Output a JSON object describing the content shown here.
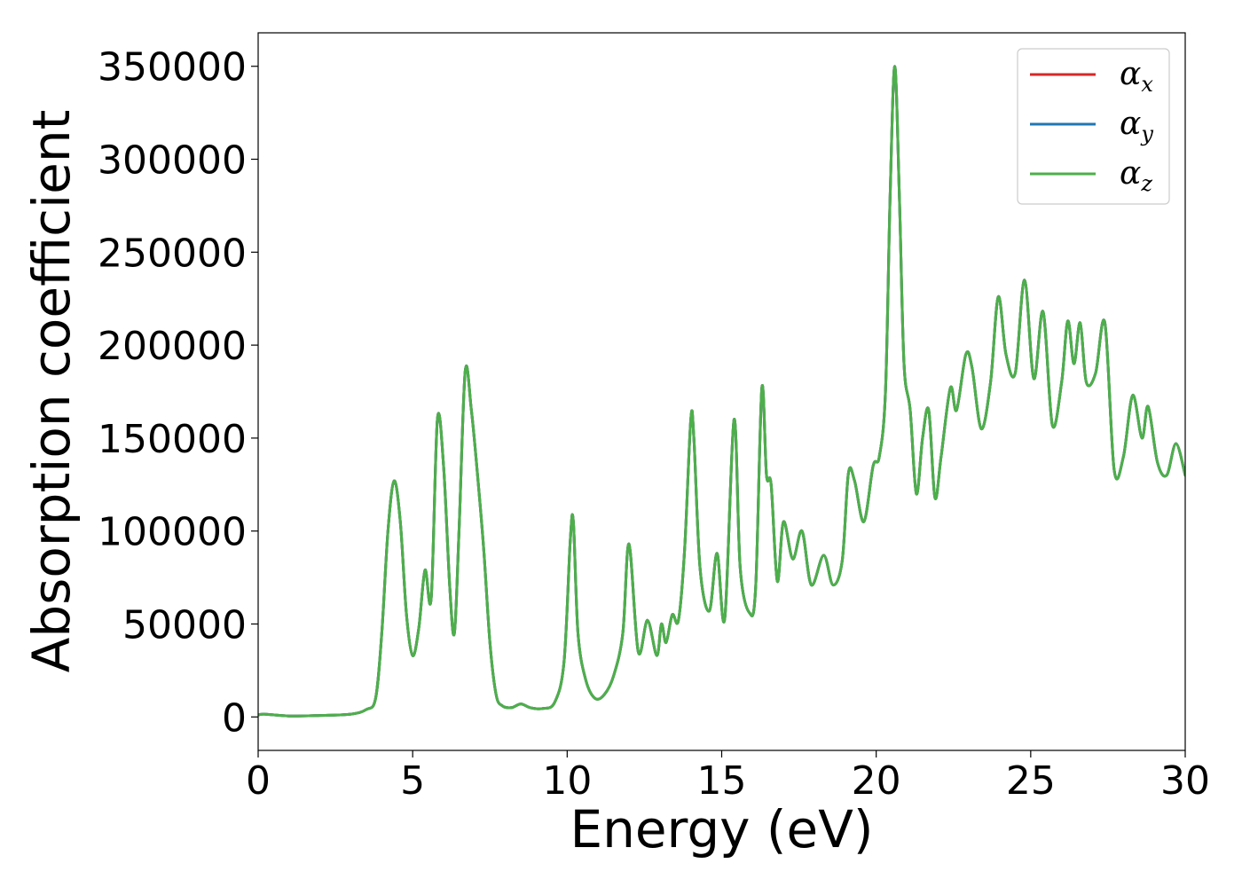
{
  "chart_data": {
    "type": "line",
    "title": "",
    "xlabel": "Energy (eV)",
    "ylabel": "Absorption coefficient",
    "xlim": [
      0,
      30
    ],
    "ylim": [
      -18000,
      368000
    ],
    "x_ticks": [
      "0",
      "5",
      "10",
      "15",
      "20",
      "25",
      "30"
    ],
    "y_ticks": [
      "0",
      "50000",
      "100000",
      "150000",
      "200000",
      "250000",
      "300000",
      "350000"
    ],
    "grid": false,
    "legend_position": "top-right",
    "legend": [
      {
        "symbol": "α",
        "subscript": "x",
        "color": "#d62728"
      },
      {
        "symbol": "α",
        "subscript": "y",
        "color": "#1f77b4"
      },
      {
        "symbol": "α",
        "subscript": "z",
        "color": "#4daf4a"
      }
    ],
    "series": [
      {
        "name": "αx",
        "color": "#d62728",
        "x": [
          0,
          0.2,
          1,
          2,
          3,
          3.5,
          3.8,
          4.0,
          4.2,
          4.4,
          4.6,
          4.8,
          5.0,
          5.2,
          5.4,
          5.6,
          5.8,
          6.0,
          6.2,
          6.35,
          6.5,
          6.7,
          6.9,
          7.1,
          7.3,
          7.5,
          7.7,
          7.9,
          8.2,
          8.5,
          8.8,
          9.2,
          9.6,
          9.9,
          10.1,
          10.2,
          10.35,
          10.6,
          10.9,
          11.2,
          11.5,
          11.8,
          12.0,
          12.3,
          12.6,
          12.9,
          13.05,
          13.2,
          13.4,
          13.6,
          13.8,
          14.0,
          14.1,
          14.3,
          14.6,
          14.85,
          15.1,
          15.4,
          15.6,
          15.9,
          16.1,
          16.3,
          16.45,
          16.6,
          16.8,
          17.0,
          17.3,
          17.6,
          17.9,
          18.3,
          18.6,
          18.9,
          19.1,
          19.3,
          19.6,
          19.9,
          20.1,
          20.3,
          20.45,
          20.6,
          20.75,
          20.9,
          21.1,
          21.3,
          21.5,
          21.7,
          21.9,
          22.1,
          22.4,
          22.6,
          22.9,
          23.1,
          23.4,
          23.7,
          23.95,
          24.2,
          24.5,
          24.8,
          25.1,
          25.4,
          25.7,
          26.0,
          26.2,
          26.4,
          26.6,
          26.8,
          27.1,
          27.4,
          27.7,
          28.0,
          28.3,
          28.6,
          28.8,
          29.1,
          29.4,
          29.7,
          30.0
        ],
        "values": [
          1000,
          1500,
          500,
          800,
          1500,
          4000,
          10000,
          45000,
          100000,
          127000,
          105000,
          55000,
          33000,
          48000,
          79000,
          64000,
          160000,
          135000,
          70000,
          45000,
          100000,
          186000,
          165000,
          130000,
          90000,
          40000,
          12000,
          6000,
          5000,
          7000,
          5000,
          4500,
          8000,
          30000,
          95000,
          105000,
          45000,
          20000,
          10000,
          12000,
          22000,
          45000,
          93000,
          35000,
          52000,
          33000,
          50000,
          40000,
          55000,
          52000,
          90000,
          160000,
          150000,
          80000,
          57000,
          88000,
          53000,
          160000,
          80000,
          56000,
          70000,
          177000,
          130000,
          125000,
          73000,
          105000,
          85000,
          100000,
          71000,
          87000,
          71000,
          84000,
          131000,
          127000,
          105000,
          135000,
          140000,
          175000,
          280000,
          350000,
          280000,
          190000,
          165000,
          120000,
          150000,
          165000,
          118000,
          140000,
          177000,
          165000,
          195000,
          188000,
          155000,
          180000,
          226000,
          195000,
          185000,
          235000,
          182000,
          218000,
          157000,
          180000,
          213000,
          190000,
          212000,
          180000,
          185000,
          212000,
          133000,
          140000,
          173000,
          150000,
          167000,
          137000,
          130000,
          147000,
          130000
        ]
      },
      {
        "name": "αy",
        "color": "#1f77b4",
        "x": [
          0,
          0.2,
          1,
          2,
          3,
          3.5,
          3.8,
          4.0,
          4.2,
          4.4,
          4.6,
          4.8,
          5.0,
          5.2,
          5.4,
          5.6,
          5.8,
          6.0,
          6.2,
          6.35,
          6.5,
          6.7,
          6.9,
          7.1,
          7.3,
          7.5,
          7.7,
          7.9,
          8.2,
          8.5,
          8.8,
          9.2,
          9.6,
          9.9,
          10.1,
          10.2,
          10.35,
          10.6,
          10.9,
          11.2,
          11.5,
          11.8,
          12.0,
          12.3,
          12.6,
          12.9,
          13.05,
          13.2,
          13.4,
          13.6,
          13.8,
          14.0,
          14.1,
          14.3,
          14.6,
          14.85,
          15.1,
          15.4,
          15.6,
          15.9,
          16.1,
          16.3,
          16.45,
          16.6,
          16.8,
          17.0,
          17.3,
          17.6,
          17.9,
          18.3,
          18.6,
          18.9,
          19.1,
          19.3,
          19.6,
          19.9,
          20.1,
          20.3,
          20.45,
          20.6,
          20.75,
          20.9,
          21.1,
          21.3,
          21.5,
          21.7,
          21.9,
          22.1,
          22.4,
          22.6,
          22.9,
          23.1,
          23.4,
          23.7,
          23.95,
          24.2,
          24.5,
          24.8,
          25.1,
          25.4,
          25.7,
          26.0,
          26.2,
          26.4,
          26.6,
          26.8,
          27.1,
          27.4,
          27.7,
          28.0,
          28.3,
          28.6,
          28.8,
          29.1,
          29.4,
          29.7,
          30.0
        ],
        "values": [
          1000,
          1500,
          500,
          800,
          1500,
          4000,
          10000,
          45000,
          100000,
          127000,
          105000,
          55000,
          33000,
          48000,
          79000,
          64000,
          160000,
          135000,
          70000,
          45000,
          100000,
          186000,
          165000,
          130000,
          90000,
          40000,
          12000,
          6000,
          5000,
          7000,
          5000,
          4500,
          8000,
          30000,
          95000,
          105000,
          45000,
          20000,
          10000,
          12000,
          22000,
          45000,
          93000,
          35000,
          52000,
          33000,
          50000,
          40000,
          55000,
          52000,
          90000,
          160000,
          150000,
          80000,
          57000,
          88000,
          53000,
          160000,
          80000,
          56000,
          70000,
          177000,
          130000,
          125000,
          73000,
          105000,
          85000,
          100000,
          71000,
          87000,
          71000,
          84000,
          131000,
          127000,
          105000,
          135000,
          140000,
          175000,
          280000,
          350000,
          280000,
          190000,
          165000,
          120000,
          150000,
          165000,
          118000,
          140000,
          177000,
          165000,
          195000,
          188000,
          155000,
          180000,
          226000,
          195000,
          185000,
          235000,
          182000,
          218000,
          157000,
          180000,
          213000,
          190000,
          212000,
          180000,
          185000,
          212000,
          133000,
          140000,
          173000,
          150000,
          167000,
          137000,
          130000,
          147000,
          130000
        ]
      },
      {
        "name": "αz",
        "color": "#4daf4a",
        "x": [
          0,
          0.2,
          1,
          2,
          3,
          3.5,
          3.8,
          4.0,
          4.2,
          4.4,
          4.6,
          4.8,
          5.0,
          5.2,
          5.4,
          5.6,
          5.8,
          6.0,
          6.2,
          6.35,
          6.5,
          6.7,
          6.9,
          7.1,
          7.3,
          7.5,
          7.7,
          7.9,
          8.2,
          8.5,
          8.8,
          9.2,
          9.6,
          9.9,
          10.1,
          10.2,
          10.35,
          10.6,
          10.9,
          11.2,
          11.5,
          11.8,
          12.0,
          12.3,
          12.6,
          12.9,
          13.05,
          13.2,
          13.4,
          13.6,
          13.8,
          14.0,
          14.1,
          14.3,
          14.6,
          14.85,
          15.1,
          15.4,
          15.6,
          15.9,
          16.1,
          16.3,
          16.45,
          16.6,
          16.8,
          17.0,
          17.3,
          17.6,
          17.9,
          18.3,
          18.6,
          18.9,
          19.1,
          19.3,
          19.6,
          19.9,
          20.1,
          20.3,
          20.45,
          20.6,
          20.75,
          20.9,
          21.1,
          21.3,
          21.5,
          21.7,
          21.9,
          22.1,
          22.4,
          22.6,
          22.9,
          23.1,
          23.4,
          23.7,
          23.95,
          24.2,
          24.5,
          24.8,
          25.1,
          25.4,
          25.7,
          26.0,
          26.2,
          26.4,
          26.6,
          26.8,
          27.1,
          27.4,
          27.7,
          28.0,
          28.3,
          28.6,
          28.8,
          29.1,
          29.4,
          29.7,
          30.0
        ],
        "values": [
          1000,
          1500,
          500,
          800,
          1500,
          4000,
          10000,
          45000,
          100000,
          127000,
          105000,
          55000,
          33000,
          48000,
          79000,
          64000,
          160000,
          135000,
          70000,
          45000,
          100000,
          186000,
          165000,
          130000,
          90000,
          40000,
          12000,
          6000,
          5000,
          7000,
          5000,
          4500,
          8000,
          30000,
          95000,
          105000,
          45000,
          20000,
          10000,
          12000,
          22000,
          45000,
          93000,
          35000,
          52000,
          33000,
          50000,
          40000,
          55000,
          52000,
          90000,
          160000,
          150000,
          80000,
          57000,
          88000,
          53000,
          160000,
          80000,
          56000,
          70000,
          177000,
          130000,
          125000,
          73000,
          105000,
          85000,
          100000,
          71000,
          87000,
          71000,
          84000,
          131000,
          127000,
          105000,
          135000,
          140000,
          175000,
          280000,
          350000,
          280000,
          190000,
          165000,
          120000,
          150000,
          165000,
          118000,
          140000,
          177000,
          165000,
          195000,
          188000,
          155000,
          180000,
          226000,
          195000,
          185000,
          235000,
          182000,
          218000,
          157000,
          180000,
          213000,
          190000,
          212000,
          180000,
          185000,
          212000,
          133000,
          140000,
          173000,
          150000,
          167000,
          137000,
          130000,
          147000,
          130000
        ]
      }
    ]
  }
}
